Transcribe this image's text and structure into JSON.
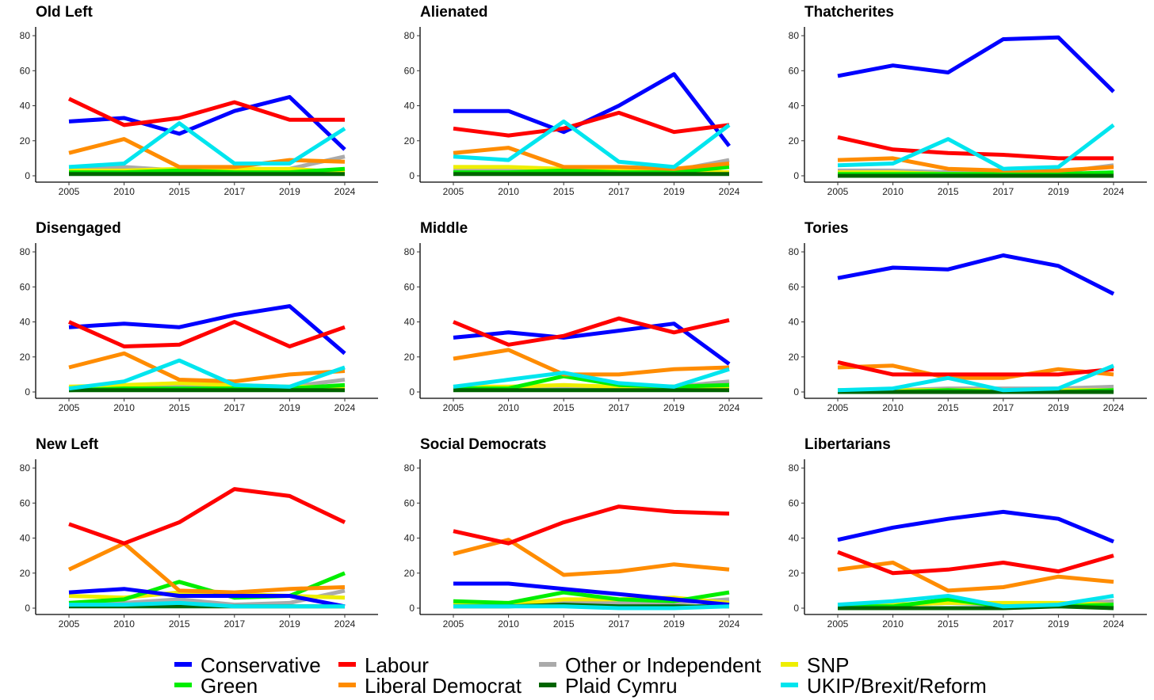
{
  "chart_data": {
    "type": "line",
    "x": [
      "2005",
      "2010",
      "2015",
      "2017",
      "2019",
      "2024"
    ],
    "ylim": [
      0,
      85
    ],
    "yticks": [
      0,
      20,
      40,
      60,
      80
    ],
    "grid": false,
    "legend_position": "bottom",
    "legend": [
      {
        "name": "Conservative",
        "color": "#0000ff"
      },
      {
        "name": "Labour",
        "color": "#ff0000"
      },
      {
        "name": "Other or Independent",
        "color": "#aaaaaa"
      },
      {
        "name": "SNP",
        "color": "#eeee00"
      },
      {
        "name": "Green",
        "color": "#00ee00"
      },
      {
        "name": "Liberal Democrat",
        "color": "#ff8c00"
      },
      {
        "name": "Plaid Cymru",
        "color": "#006400"
      },
      {
        "name": "UKIP/Brexit/Reform",
        "color": "#00e5ee"
      }
    ],
    "panels": [
      {
        "title": "Old Left",
        "series": [
          {
            "name": "Other or Independent",
            "values": [
              4,
              5,
              3,
              3,
              4,
              11
            ]
          },
          {
            "name": "SNP",
            "values": [
              3,
              3,
              4,
              4,
              4,
              2
            ]
          },
          {
            "name": "Green",
            "values": [
              2,
              2,
              3,
              2,
              2,
              4
            ]
          },
          {
            "name": "Plaid Cymru",
            "values": [
              1,
              1,
              1,
              1,
              1,
              1
            ]
          },
          {
            "name": "Liberal Democrat",
            "values": [
              13,
              21,
              5,
              5,
              9,
              8
            ]
          },
          {
            "name": "Conservative",
            "values": [
              31,
              33,
              24,
              37,
              45,
              15
            ]
          },
          {
            "name": "Labour",
            "values": [
              44,
              29,
              33,
              42,
              32,
              32
            ]
          },
          {
            "name": "UKIP/Brexit/Reform",
            "values": [
              5,
              7,
              30,
              7,
              7,
              27
            ]
          }
        ]
      },
      {
        "title": "Alienated",
        "series": [
          {
            "name": "Other or Independent",
            "values": [
              3,
              3,
              3,
              3,
              3,
              9
            ]
          },
          {
            "name": "SNP",
            "values": [
              5,
              5,
              4,
              4,
              3,
              2
            ]
          },
          {
            "name": "Green",
            "values": [
              2,
              2,
              3,
              2,
              2,
              5
            ]
          },
          {
            "name": "Plaid Cymru",
            "values": [
              1,
              1,
              1,
              1,
              1,
              1
            ]
          },
          {
            "name": "Liberal Democrat",
            "values": [
              13,
              16,
              5,
              5,
              4,
              7
            ]
          },
          {
            "name": "Conservative",
            "values": [
              37,
              37,
              25,
              40,
              58,
              17
            ]
          },
          {
            "name": "Labour",
            "values": [
              27,
              23,
              27,
              36,
              25,
              29
            ]
          },
          {
            "name": "UKIP/Brexit/Reform",
            "values": [
              11,
              9,
              31,
              8,
              5,
              29
            ]
          }
        ]
      },
      {
        "title": "Thatcherites",
        "series": [
          {
            "name": "Other or Independent",
            "values": [
              3,
              3,
              2,
              2,
              2,
              6
            ]
          },
          {
            "name": "SNP",
            "values": [
              2,
              2,
              1,
              1,
              1,
              1
            ]
          },
          {
            "name": "Green",
            "values": [
              1,
              1,
              1,
              1,
              1,
              2
            ]
          },
          {
            "name": "Plaid Cymru",
            "values": [
              0,
              0,
              0,
              0,
              0,
              0
            ]
          },
          {
            "name": "Liberal Democrat",
            "values": [
              9,
              10,
              4,
              3,
              3,
              5
            ]
          },
          {
            "name": "Conservative",
            "values": [
              57,
              63,
              59,
              78,
              79,
              48
            ]
          },
          {
            "name": "Labour",
            "values": [
              22,
              15,
              13,
              12,
              10,
              10
            ]
          },
          {
            "name": "UKIP/Brexit/Reform",
            "values": [
              6,
              7,
              21,
              4,
              5,
              29
            ]
          }
        ]
      },
      {
        "title": "Disengaged",
        "series": [
          {
            "name": "Other or Independent",
            "values": [
              3,
              3,
              3,
              3,
              3,
              7
            ]
          },
          {
            "name": "SNP",
            "values": [
              3,
              4,
              5,
              4,
              3,
              3
            ]
          },
          {
            "name": "Green",
            "values": [
              1,
              2,
              2,
              2,
              2,
              4
            ]
          },
          {
            "name": "Plaid Cymru",
            "values": [
              1,
              1,
              1,
              1,
              1,
              1
            ]
          },
          {
            "name": "Liberal Democrat",
            "values": [
              14,
              22,
              7,
              6,
              10,
              12
            ]
          },
          {
            "name": "Conservative",
            "values": [
              37,
              39,
              37,
              44,
              49,
              22
            ]
          },
          {
            "name": "Labour",
            "values": [
              40,
              26,
              27,
              40,
              26,
              37
            ]
          },
          {
            "name": "UKIP/Brexit/Reform",
            "values": [
              2,
              6,
              18,
              4,
              3,
              14
            ]
          }
        ]
      },
      {
        "title": "Middle",
        "series": [
          {
            "name": "Other or Independent",
            "values": [
              3,
              3,
              3,
              3,
              3,
              6
            ]
          },
          {
            "name": "SNP",
            "values": [
              3,
              3,
              4,
              3,
              3,
              2
            ]
          },
          {
            "name": "Green",
            "values": [
              2,
              2,
              9,
              4,
              3,
              4
            ]
          },
          {
            "name": "Plaid Cymru",
            "values": [
              1,
              1,
              1,
              1,
              1,
              1
            ]
          },
          {
            "name": "Liberal Democrat",
            "values": [
              19,
              24,
              10,
              10,
              13,
              14
            ]
          },
          {
            "name": "Conservative",
            "values": [
              31,
              34,
              31,
              35,
              39,
              16
            ]
          },
          {
            "name": "Labour",
            "values": [
              40,
              27,
              32,
              42,
              34,
              41
            ]
          },
          {
            "name": "UKIP/Brexit/Reform",
            "values": [
              3,
              7,
              11,
              5,
              3,
              13
            ]
          }
        ]
      },
      {
        "title": "Tories",
        "series": [
          {
            "name": "Other or Independent",
            "values": [
              1,
              1,
              2,
              2,
              2,
              3
            ]
          },
          {
            "name": "SNP",
            "values": [
              1,
              1,
              1,
              1,
              1,
              1
            ]
          },
          {
            "name": "Green",
            "values": [
              0,
              0,
              1,
              0,
              0,
              1
            ]
          },
          {
            "name": "Plaid Cymru",
            "values": [
              0,
              0,
              0,
              0,
              0,
              0
            ]
          },
          {
            "name": "Liberal Democrat",
            "values": [
              14,
              15,
              8,
              8,
              13,
              10
            ]
          },
          {
            "name": "Conservative",
            "values": [
              65,
              71,
              70,
              78,
              72,
              56
            ]
          },
          {
            "name": "Labour",
            "values": [
              17,
              10,
              10,
              10,
              10,
              13
            ]
          },
          {
            "name": "UKIP/Brexit/Reform",
            "values": [
              1,
              2,
              8,
              1,
              2,
              15
            ]
          }
        ]
      },
      {
        "title": "New Left",
        "series": [
          {
            "name": "Other or Independent",
            "values": [
              3,
              3,
              5,
              2,
              3,
              10
            ]
          },
          {
            "name": "SNP",
            "values": [
              7,
              6,
              9,
              8,
              7,
              6
            ]
          },
          {
            "name": "Green",
            "values": [
              3,
              5,
              15,
              6,
              7,
              20
            ]
          },
          {
            "name": "Plaid Cymru",
            "values": [
              1,
              1,
              1,
              1,
              1,
              1
            ]
          },
          {
            "name": "Liberal Democrat",
            "values": [
              22,
              37,
              10,
              9,
              11,
              12
            ]
          },
          {
            "name": "Conservative",
            "values": [
              9,
              11,
              7,
              7,
              7,
              1
            ]
          },
          {
            "name": "Labour",
            "values": [
              48,
              37,
              49,
              68,
              64,
              49
            ]
          },
          {
            "name": "UKIP/Brexit/Reform",
            "values": [
              2,
              2,
              3,
              1,
              1,
              1
            ]
          }
        ]
      },
      {
        "title": "Social Democrats",
        "series": [
          {
            "name": "Other or Independent",
            "values": [
              2,
              2,
              3,
              3,
              3,
              5
            ]
          },
          {
            "name": "SNP",
            "values": [
              3,
              2,
              5,
              5,
              6,
              3
            ]
          },
          {
            "name": "Green",
            "values": [
              4,
              3,
              9,
              5,
              4,
              9
            ]
          },
          {
            "name": "Plaid Cymru",
            "values": [
              1,
              1,
              2,
              1,
              1,
              1
            ]
          },
          {
            "name": "Liberal Democrat",
            "values": [
              31,
              39,
              19,
              21,
              25,
              22
            ]
          },
          {
            "name": "Conservative",
            "values": [
              14,
              14,
              11,
              8,
              5,
              2
            ]
          },
          {
            "name": "Labour",
            "values": [
              44,
              37,
              49,
              58,
              55,
              54
            ]
          },
          {
            "name": "UKIP/Brexit/Reform",
            "values": [
              1,
              1,
              1,
              0,
              0,
              1
            ]
          }
        ]
      },
      {
        "title": "Libertarians",
        "series": [
          {
            "name": "Other or Independent",
            "values": [
              1,
              2,
              3,
              2,
              2,
              4
            ]
          },
          {
            "name": "SNP",
            "values": [
              1,
              2,
              3,
              3,
              3,
              2
            ]
          },
          {
            "name": "Green",
            "values": [
              1,
              1,
              5,
              1,
              1,
              2
            ]
          },
          {
            "name": "Plaid Cymru",
            "values": [
              0,
              0,
              0,
              0,
              1,
              0
            ]
          },
          {
            "name": "Liberal Democrat",
            "values": [
              22,
              26,
              10,
              12,
              18,
              15
            ]
          },
          {
            "name": "Conservative",
            "values": [
              39,
              46,
              51,
              55,
              51,
              38
            ]
          },
          {
            "name": "Labour",
            "values": [
              32,
              20,
              22,
              26,
              21,
              30
            ]
          },
          {
            "name": "UKIP/Brexit/Reform",
            "values": [
              2,
              4,
              7,
              1,
              2,
              7
            ]
          }
        ]
      }
    ]
  }
}
